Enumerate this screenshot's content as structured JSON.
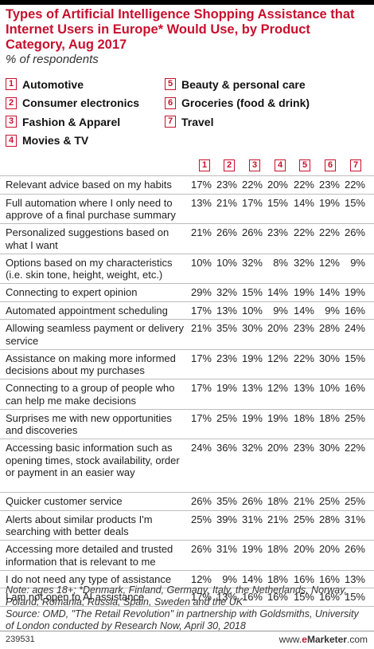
{
  "title": "Types of Artificial Intelligence Shopping Assistance that Internet Users in Europe* Would Use, by Product Category, Aug 2017",
  "subtitle": "% of respondents",
  "legend": {
    "left": [
      {
        "num": "1",
        "label": "Automotive"
      },
      {
        "num": "2",
        "label": "Consumer electronics"
      },
      {
        "num": "3",
        "label": "Fashion & Apparel"
      },
      {
        "num": "4",
        "label": "Movies & TV"
      }
    ],
    "right": [
      {
        "num": "5",
        "label": "Beauty & personal care"
      },
      {
        "num": "6",
        "label": "Groceries (food & drink)"
      },
      {
        "num": "7",
        "label": "Travel"
      }
    ]
  },
  "chart_data": {
    "type": "table",
    "columns": [
      "1",
      "2",
      "3",
      "4",
      "5",
      "6",
      "7"
    ],
    "categories": [
      "Automotive",
      "Consumer electronics",
      "Fashion & Apparel",
      "Movies & TV",
      "Beauty & personal care",
      "Groceries (food & drink)",
      "Travel"
    ],
    "rows": [
      {
        "label": "Relevant advice based on my habits",
        "values": [
          "17%",
          "23%",
          "22%",
          "20%",
          "22%",
          "23%",
          "22%"
        ]
      },
      {
        "label": "Full automation where I only need to approve of a final purchase summary",
        "values": [
          "13%",
          "21%",
          "17%",
          "15%",
          "14%",
          "19%",
          "15%"
        ]
      },
      {
        "label": "Personalized suggestions based on what I want",
        "values": [
          "21%",
          "26%",
          "26%",
          "23%",
          "22%",
          "22%",
          "26%"
        ]
      },
      {
        "label": "Options based on my characteristics (i.e. skin tone, height, weight, etc.)",
        "values": [
          "10%",
          "10%",
          "32%",
          "8%",
          "32%",
          "12%",
          "9%"
        ]
      },
      {
        "label": "Connecting to expert opinion",
        "values": [
          "29%",
          "32%",
          "15%",
          "14%",
          "19%",
          "14%",
          "19%"
        ]
      },
      {
        "label": "Automated appointment scheduling",
        "values": [
          "17%",
          "13%",
          "10%",
          "9%",
          "14%",
          "9%",
          "16%"
        ]
      },
      {
        "label": "Allowing seamless payment or delivery service",
        "values": [
          "21%",
          "35%",
          "30%",
          "20%",
          "23%",
          "28%",
          "24%"
        ]
      },
      {
        "label": "Assistance on making more informed decisions about my purchases",
        "values": [
          "17%",
          "23%",
          "19%",
          "12%",
          "22%",
          "30%",
          "15%"
        ]
      },
      {
        "label": "Connecting to a group of people who can help me make decisions",
        "values": [
          "17%",
          "19%",
          "13%",
          "12%",
          "13%",
          "10%",
          "16%"
        ]
      },
      {
        "label": "Surprises me with new opportunities and discoveries",
        "values": [
          "17%",
          "25%",
          "19%",
          "19%",
          "18%",
          "18%",
          "25%"
        ]
      },
      {
        "label": "Accessing basic information such as opening times, stock availability, order or payment in an easier way",
        "values": [
          "24%",
          "36%",
          "32%",
          "20%",
          "23%",
          "30%",
          "22%"
        ]
      },
      {
        "label": "Quicker customer service",
        "values": [
          "26%",
          "35%",
          "26%",
          "18%",
          "21%",
          "25%",
          "25%"
        ]
      },
      {
        "label": "Alerts about similar products I'm searching with better deals",
        "values": [
          "25%",
          "39%",
          "31%",
          "21%",
          "25%",
          "28%",
          "31%"
        ]
      },
      {
        "label": "Accessing more detailed and trusted information that is relevant to me",
        "values": [
          "26%",
          "31%",
          "19%",
          "18%",
          "20%",
          "20%",
          "26%"
        ]
      },
      {
        "label": "I do not need any type of assistance",
        "values": [
          "12%",
          "9%",
          "14%",
          "18%",
          "16%",
          "16%",
          "13%"
        ]
      },
      {
        "label": "I am not open to AI assistance",
        "values": [
          "17%",
          "13%",
          "16%",
          "16%",
          "15%",
          "16%",
          "15%"
        ]
      }
    ]
  },
  "note": "Note: ages 18+; *Denmark, Finland, Germany, Italy, the Netherlands, Norway, Poland, Romania, Russia, Spain, Sweden and the UK",
  "source": "Source: OMD, \"The Retail Revolution\" in partnership with Goldsmiths, University of London conducted by Research Now, April 30, 2018",
  "footer": {
    "id": "239531",
    "site": "www.",
    "brand_e": "e",
    "brand_rest": "Marketer",
    "suffix": ".com"
  },
  "colors": {
    "accent": "#c8102e"
  }
}
